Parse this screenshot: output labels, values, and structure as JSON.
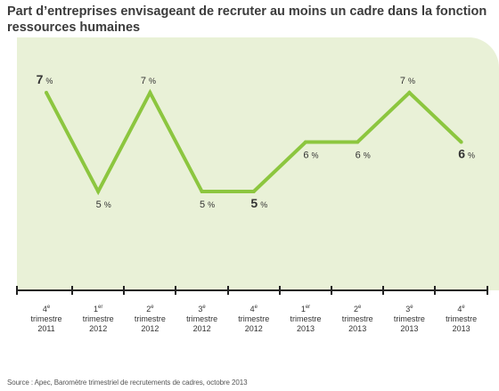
{
  "title": "Part d’entreprises envisageant de recruter au moins un cadre dans la fonction ressources humaines",
  "source": "Source : Apec, Baromètre trimestriel de recrutements de cadres, octobre 2013",
  "colors": {
    "line": "#8cc63f",
    "panel": "#e9f1d7",
    "axis": "#222222",
    "text": "#333333"
  },
  "chart_data": {
    "type": "line",
    "categories": [
      {
        "num": "4",
        "sup": "e",
        "word": "trimestre",
        "year": "2011"
      },
      {
        "num": "1",
        "sup": "er",
        "word": "trimestre",
        "year": "2012"
      },
      {
        "num": "2",
        "sup": "e",
        "word": "trimestre",
        "year": "2012"
      },
      {
        "num": "3",
        "sup": "e",
        "word": "trimestre",
        "year": "2012"
      },
      {
        "num": "4",
        "sup": "e",
        "word": "trimestre",
        "year": "2012"
      },
      {
        "num": "1",
        "sup": "er",
        "word": "trimestre",
        "year": "2013"
      },
      {
        "num": "2",
        "sup": "e",
        "word": "trimestre",
        "year": "2013"
      },
      {
        "num": "3",
        "sup": "e",
        "word": "trimestre",
        "year": "2013"
      },
      {
        "num": "4",
        "sup": "e",
        "word": "trimestre",
        "year": "2013"
      }
    ],
    "values": [
      7,
      5,
      7,
      5,
      5,
      6,
      6,
      7,
      6
    ],
    "value_labels": [
      "7",
      "5",
      "7",
      "5",
      "5",
      "6",
      "6",
      "7",
      "6"
    ],
    "unit": "%",
    "emphasized_points": [
      0,
      4,
      8
    ],
    "label_position": [
      "above",
      "below",
      "above",
      "below",
      "below",
      "below",
      "below",
      "above",
      "below"
    ],
    "ylim": [
      5,
      7
    ],
    "grid": false,
    "legend": "none"
  }
}
